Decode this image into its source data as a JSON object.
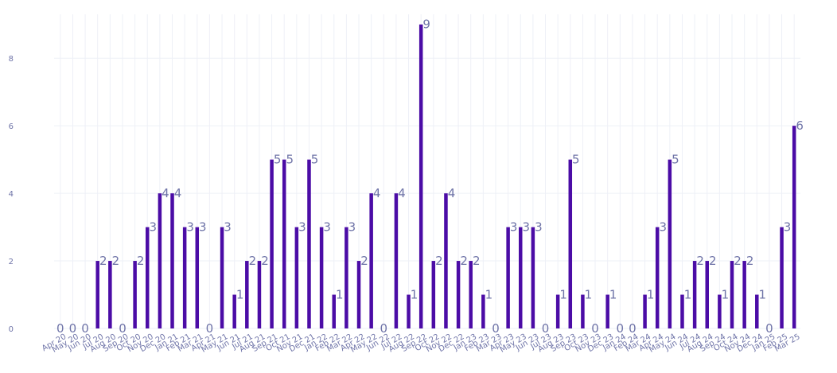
{
  "chart_data": {
    "type": "bar",
    "title": "",
    "xlabel": "",
    "ylabel": "",
    "ylim": [
      0,
      9.3
    ],
    "yticks": [
      0,
      2,
      4,
      6,
      8
    ],
    "grid": true,
    "bar_color": "#4b0ca6",
    "text_color": "#6f74a8",
    "categories": [
      "Apr 20",
      "May 20",
      "Jun 20",
      "Jul 20",
      "Aug 20",
      "Sep 20",
      "Oct 20",
      "Nov 20",
      "Dec 20",
      "Jan 21",
      "Feb 21",
      "Mar 21",
      "Apr 21",
      "May 21",
      "Jun 21",
      "Jul 21",
      "Aug 21",
      "Sep 21",
      "Oct 21",
      "Nov 21",
      "Dec 21",
      "Jan 22",
      "Feb 22",
      "Mar 22",
      "Apr 22",
      "May 22",
      "Jun 22",
      "Jul 22",
      "Aug 22",
      "Sep 22",
      "Oct 22",
      "Nov 22",
      "Dec 22",
      "Jan 23",
      "Feb 23",
      "Mar 23",
      "Apr 23",
      "May 23",
      "Jun 23",
      "Jul 23",
      "Aug 23",
      "Sep 23",
      "Oct 23",
      "Nov 23",
      "Dec 23",
      "Jan 24",
      "Feb 24",
      "Mar 24",
      "Apr 24",
      "May 24",
      "Jun 24",
      "Jul 24",
      "Aug 24",
      "Sep 24",
      "Oct 24",
      "Nov 24",
      "Dec 24",
      "Jan 25",
      "Feb 25",
      "Mar 25"
    ],
    "values": [
      0,
      0,
      0,
      2,
      2,
      0,
      2,
      3,
      4,
      4,
      3,
      3,
      0,
      3,
      1,
      2,
      2,
      5,
      5,
      3,
      5,
      3,
      1,
      3,
      2,
      4,
      0,
      4,
      1,
      9,
      2,
      4,
      2,
      2,
      1,
      0,
      3,
      3,
      3,
      0,
      1,
      5,
      1,
      0,
      1,
      0,
      0,
      1,
      3,
      5,
      1,
      2,
      2,
      1,
      2,
      2,
      1,
      0,
      3,
      6
    ]
  }
}
